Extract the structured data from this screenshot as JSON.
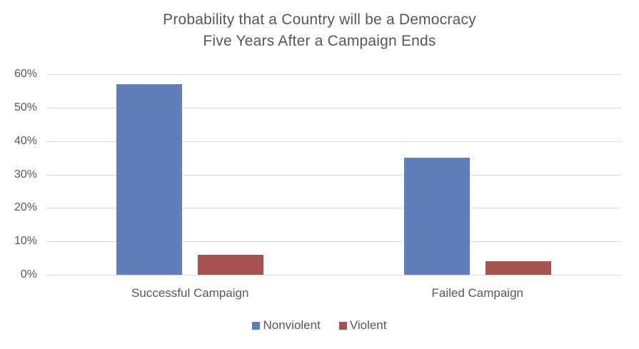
{
  "chart_data": {
    "type": "bar",
    "title": "Probability that a Country will be a Democracy Five Years After a Campaign Ends",
    "title_lines": [
      "Probability that a Country will be a Democracy",
      "Five Years After a Campaign Ends"
    ],
    "categories": [
      "Successful Campaign",
      "Failed Campaign"
    ],
    "series": [
      {
        "name": "Nonviolent",
        "color": "#5d7eb9",
        "values": [
          57,
          35
        ]
      },
      {
        "name": "Violent",
        "color": "#a65251",
        "values": [
          6,
          4
        ]
      }
    ],
    "xlabel": "",
    "ylabel": "",
    "ylim": [
      0,
      60
    ],
    "y_ticks": [
      {
        "value": 0,
        "label": "0%"
      },
      {
        "value": 10,
        "label": "10%"
      },
      {
        "value": 20,
        "label": "20%"
      },
      {
        "value": 30,
        "label": "30%"
      },
      {
        "value": 40,
        "label": "40%"
      },
      {
        "value": 50,
        "label": "50%"
      },
      {
        "value": 60,
        "label": "60%"
      }
    ],
    "grid": true,
    "legend_position": "bottom",
    "value_unit": "%"
  },
  "colors": {
    "background": "#ffffff",
    "text": "#57585a",
    "gridline": "#d9d9d9"
  }
}
